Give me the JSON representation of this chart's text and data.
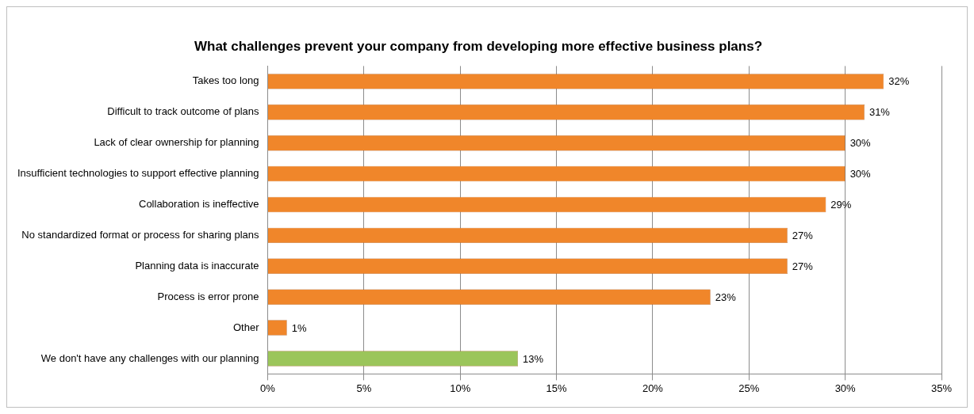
{
  "chart_data": {
    "type": "bar",
    "orientation": "horizontal",
    "title": "What challenges prevent your company from developing more effective business plans?",
    "categories": [
      "Takes too long",
      "Difficult to track outcome of plans",
      "Lack of clear ownership for planning",
      "Insufficient technologies to support effective planning",
      "Collaboration is ineffective",
      "No standardized format or process for sharing plans",
      "Planning data is inaccurate",
      "Process is error prone",
      "Other",
      "We don't have any challenges with our planning"
    ],
    "values": [
      32,
      31,
      30,
      30,
      29,
      27,
      27,
      23,
      1,
      13
    ],
    "value_labels": [
      "32%",
      "31%",
      "30%",
      "30%",
      "29%",
      "27%",
      "27%",
      "23%",
      "1%",
      "13%"
    ],
    "colors": [
      "#f0862a",
      "#f0862a",
      "#f0862a",
      "#f0862a",
      "#f0862a",
      "#f0862a",
      "#f0862a",
      "#f0862a",
      "#f0862a",
      "#9bc55a"
    ],
    "xlim": [
      0,
      35
    ],
    "xticks": [
      {
        "value": 0,
        "label": "0%"
      },
      {
        "value": 5,
        "label": "5%"
      },
      {
        "value": 10,
        "label": "10%"
      },
      {
        "value": 15,
        "label": "15%"
      },
      {
        "value": 20,
        "label": "20%"
      },
      {
        "value": 25,
        "label": "25%"
      },
      {
        "value": 30,
        "label": "30%"
      },
      {
        "value": 35,
        "label": "35%"
      }
    ],
    "grid": "x",
    "legend": false
  }
}
